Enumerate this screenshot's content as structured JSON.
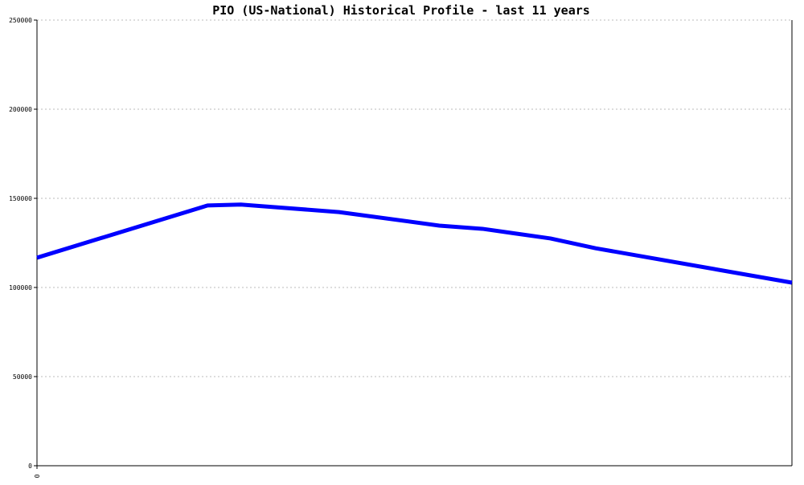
{
  "chart_data": {
    "type": "line",
    "title": "PIO (US-National) Historical Profile - last 11 years",
    "x": [
      0,
      2.26,
      2.7,
      4.0,
      5.33,
      5.9,
      6.8,
      7.4,
      10
    ],
    "series": [
      {
        "name": "PIO",
        "color": "#0000ff",
        "values": [
          116700,
          146000,
          146500,
          142300,
          134700,
          132900,
          127500,
          122000,
          102700
        ]
      }
    ],
    "xlim": [
      0,
      10
    ],
    "xticks": [
      0
    ],
    "ylim": [
      0,
      250000
    ],
    "yticks": [
      0,
      50000,
      100000,
      150000,
      200000,
      250000
    ],
    "grid": true
  }
}
